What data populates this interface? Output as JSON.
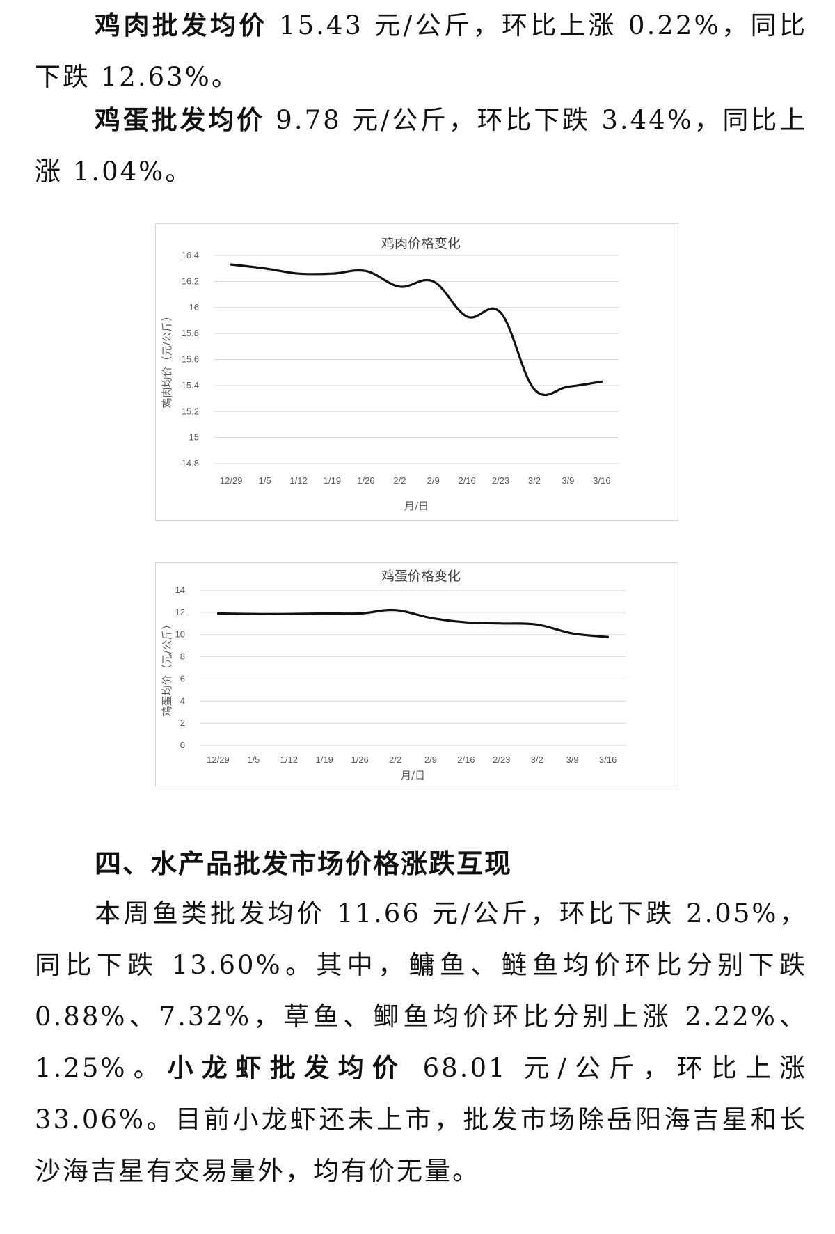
{
  "paragraphs": {
    "chicken": {
      "bold": "鸡肉批发均价",
      "rest": " 15.43 元/公斤，环比上涨 0.22%，同比下跌 12.63%。"
    },
    "egg": {
      "bold": "鸡蛋批发均价",
      "rest": " 9.78 元/公斤，环比下跌 3.44%，同比上涨 1.04%。"
    },
    "fish": {
      "text": "本周鱼类批发均价 11.66 元/公斤，环比下跌 2.05%，同比下跌 13.60%。其中，鳙鱼、鲢鱼均价环比分别下跌 0.88%、7.32%，草鱼、鲫鱼均价环比分别上涨 2.22%、1.25%。",
      "bold": "小龙虾批发均价",
      "rest": " 68.01 元/公斤，环比上涨 33.06%。目前小龙虾还未上市，批发市场除岳阳海吉星和长沙海吉星有交易量外，均有价无量。"
    }
  },
  "section_heading": "四、水产品批发市场价格涨跌互现",
  "chart_data": [
    {
      "type": "line",
      "title": "鸡肉价格变化",
      "xlabel": "月/日",
      "ylabel": "鸡肉均价（元/公斤）",
      "categories": [
        "12/29",
        "1/5",
        "1/12",
        "1/19",
        "1/26",
        "2/2",
        "2/9",
        "2/16",
        "2/23",
        "3/2",
        "3/9",
        "3/16"
      ],
      "series": [
        {
          "values": [
            16.33,
            16.3,
            16.26,
            16.26,
            16.28,
            16.16,
            16.2,
            15.93,
            15.96,
            15.37,
            15.39,
            15.43
          ]
        }
      ],
      "ylim": [
        14.8,
        16.4
      ],
      "yticks": [
        "16.4",
        "16.2",
        "16",
        "15.8",
        "15.6",
        "15.4",
        "15.2",
        "15",
        "14.8"
      ],
      "grid": true,
      "color": "#111111"
    },
    {
      "type": "line",
      "title": "鸡蛋价格变化",
      "xlabel": "月/日",
      "ylabel": "鸡蛋均价（元/公斤）",
      "categories": [
        "12/29",
        "1/5",
        "1/12",
        "1/19",
        "1/26",
        "2/2",
        "2/9",
        "2/16",
        "2/23",
        "3/2",
        "3/9",
        "3/16"
      ],
      "series": [
        {
          "values": [
            11.9,
            11.85,
            11.85,
            11.9,
            11.9,
            12.2,
            11.5,
            11.1,
            11.0,
            10.9,
            10.1,
            9.78
          ]
        }
      ],
      "ylim": [
        0,
        14
      ],
      "yticks": [
        "14",
        "12",
        "10",
        "8",
        "6",
        "4",
        "2",
        "0"
      ],
      "grid": true,
      "color": "#111111"
    }
  ]
}
